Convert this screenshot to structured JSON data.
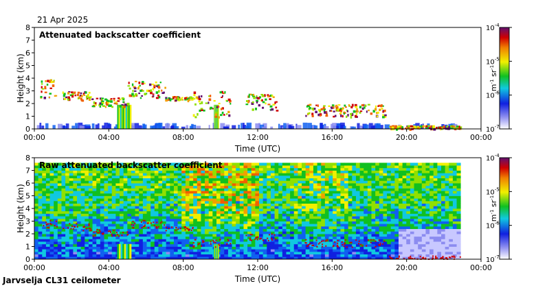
{
  "date": "21 Apr 2025",
  "footer": "Jarvselja CL31 ceilometer",
  "colorbar": {
    "ticks": [
      {
        "base": "10",
        "exp": "-4"
      },
      {
        "base": "10",
        "exp": "-5"
      },
      {
        "base": "10",
        "exp": "-6"
      },
      {
        "base": "10",
        "exp": "-7"
      }
    ],
    "unit_m": "m",
    "unit_m_exp": "-1",
    "unit_sr": "sr",
    "unit_sr_exp": "-1"
  },
  "chart_data": [
    {
      "type": "heatmap",
      "title": "Attenuated backscatter coefficient",
      "xlabel": "Time (UTC)",
      "ylabel": "Height (km)",
      "xlim": [
        0,
        24
      ],
      "ylim": [
        0,
        8
      ],
      "xticks": [
        "00:00",
        "04:00",
        "08:00",
        "12:00",
        "16:00",
        "20:00",
        "00:00"
      ],
      "yticks": [
        "0",
        "1",
        "2",
        "3",
        "4",
        "5",
        "6",
        "7",
        "8"
      ],
      "colorscale": "log10 backscatter, 1e-7 to 1e-4 m-1 sr-1",
      "features": {
        "boundary_layer_max_km": 0.5,
        "data_end_hour": 22.9,
        "precip_columns_hours": [
          [
            4.45,
            5.2
          ],
          [
            9.65,
            9.9
          ]
        ],
        "cloud_layers": [
          {
            "hours": [
              0.3,
              1.2
            ],
            "km": [
              2.5,
              4.0
            ]
          },
          {
            "hours": [
              1.5,
              3.0
            ],
            "km": [
              2.3,
              3.0
            ]
          },
          {
            "hours": [
              3.0,
              5.0
            ],
            "km": [
              1.8,
              2.5
            ]
          },
          {
            "hours": [
              5.0,
              7.0
            ],
            "km": [
              2.5,
              3.8
            ]
          },
          {
            "hours": [
              7.0,
              8.5
            ],
            "km": [
              2.3,
              2.6
            ]
          },
          {
            "hours": [
              8.5,
              10.5
            ],
            "km": [
              1.0,
              3.0
            ]
          },
          {
            "hours": [
              11.3,
              13.0
            ],
            "km": [
              1.5,
              2.8
            ]
          },
          {
            "hours": [
              14.5,
              18.8
            ],
            "km": [
              1.0,
              2.0
            ]
          },
          {
            "hours": [
              19.0,
              22.9
            ],
            "km": [
              0.05,
              0.3
            ]
          }
        ]
      }
    },
    {
      "type": "heatmap",
      "title": "Raw attenuated backscatter coefficient",
      "xlabel": "Time (UTC)",
      "ylabel": "Height (km)",
      "xlim": [
        0,
        24
      ],
      "ylim": [
        0,
        8
      ],
      "xticks": [
        "00:00",
        "04:00",
        "08:00",
        "12:00",
        "16:00",
        "20:00",
        "00:00"
      ],
      "yticks": [
        "0",
        "1",
        "2",
        "3",
        "4",
        "5",
        "6",
        "7",
        "8"
      ],
      "colorscale": "log10 backscatter, 1e-7 to 1e-4 m-1 sr-1",
      "features": {
        "data_top_km": 7.6,
        "data_end_hour": 22.9,
        "noise_dominant_above_km": 3.5
      }
    }
  ]
}
